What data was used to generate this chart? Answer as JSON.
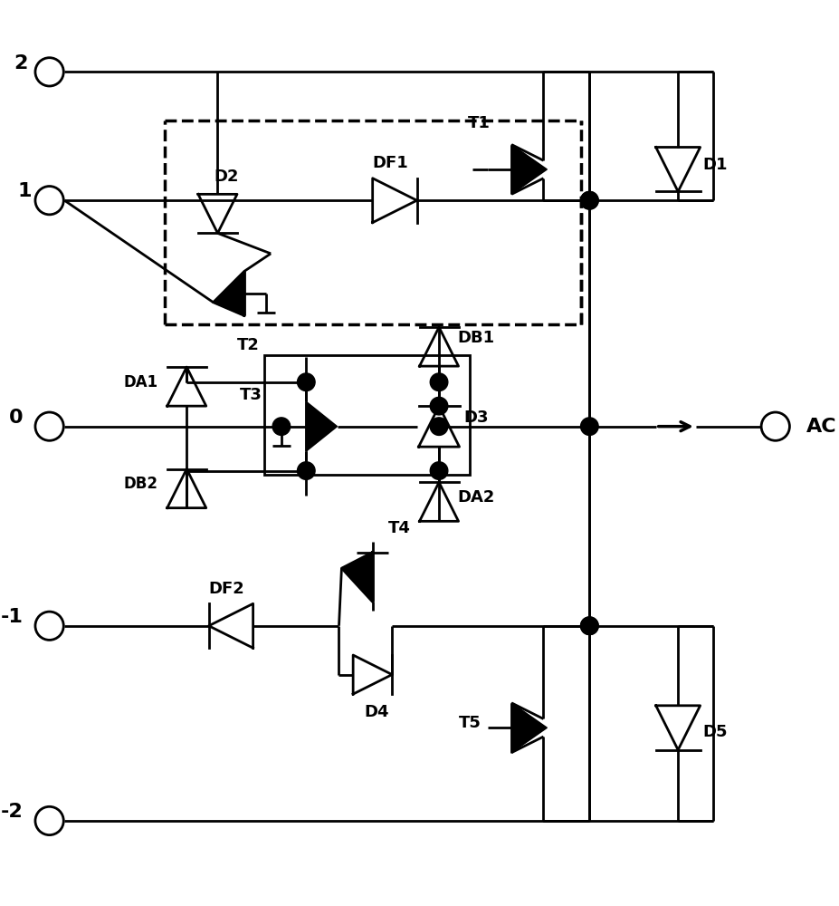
{
  "bg_color": "#ffffff",
  "lc": "#000000",
  "lw": 2.0,
  "figsize": [
    9.27,
    10.0
  ],
  "dpi": 100,
  "xlim": [
    0,
    9.27
  ],
  "ylim": [
    0,
    10.0
  ]
}
